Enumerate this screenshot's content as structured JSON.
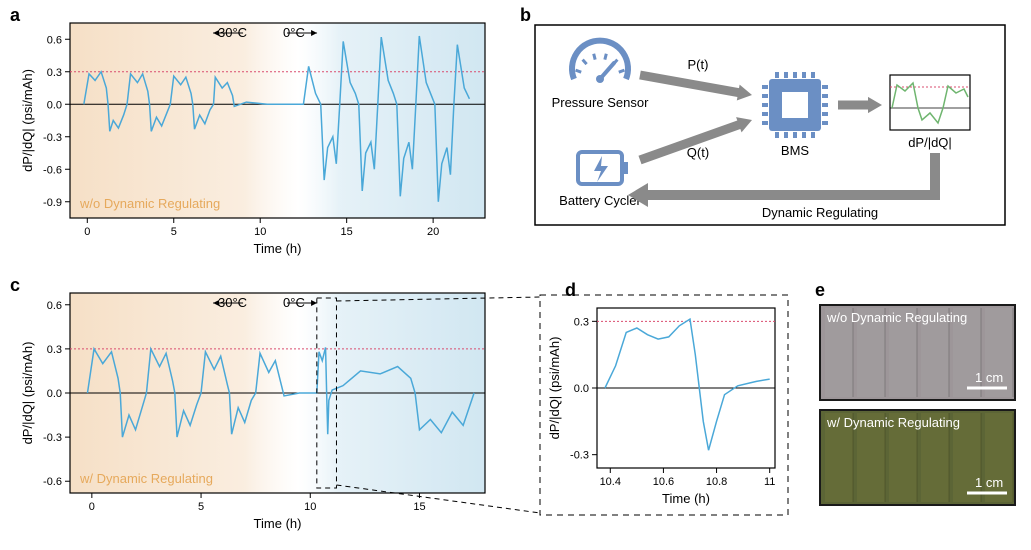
{
  "panelA": {
    "label": "a",
    "type": "line",
    "xlim": [
      -1,
      23
    ],
    "ylim": [
      -1.05,
      0.75
    ],
    "xticks": [
      0,
      5,
      10,
      15,
      20
    ],
    "yticks": [
      -0.9,
      -0.6,
      -0.3,
      0.0,
      0.3,
      0.6
    ],
    "xlabel": "Time (h)",
    "ylabel": "dP/|dQ| (psi/mAh)",
    "threshold_y": 0.3,
    "threshold_color": "#d94c6f",
    "line_color": "#4aa8d8",
    "bg_warm": "#f5dcc0",
    "bg_cool": "#cce4f0",
    "temp_left": "30°C",
    "temp_right": "0°C",
    "annotation": "w/o Dynamic Regulating",
    "annotation_color": "#e6a95c",
    "label_fontsize": 13,
    "tick_fontsize": 11,
    "data": [
      [
        -0.2,
        0
      ],
      [
        0.1,
        0.28
      ],
      [
        0.45,
        0.22
      ],
      [
        0.8,
        0.3
      ],
      [
        1.1,
        0.15
      ],
      [
        1.2,
        0
      ],
      [
        1.3,
        -0.25
      ],
      [
        1.5,
        -0.15
      ],
      [
        1.8,
        -0.22
      ],
      [
        2.1,
        -0.1
      ],
      [
        2.3,
        0
      ],
      [
        2.5,
        0.28
      ],
      [
        2.9,
        0.2
      ],
      [
        3.2,
        0.28
      ],
      [
        3.5,
        0.12
      ],
      [
        3.6,
        0
      ],
      [
        3.7,
        -0.25
      ],
      [
        4.0,
        -0.12
      ],
      [
        4.3,
        -0.2
      ],
      [
        4.6,
        -0.08
      ],
      [
        4.8,
        0
      ],
      [
        5.0,
        0.26
      ],
      [
        5.4,
        0.18
      ],
      [
        5.7,
        0.25
      ],
      [
        6.0,
        0.1
      ],
      [
        6.1,
        0
      ],
      [
        6.2,
        -0.23
      ],
      [
        6.5,
        -0.1
      ],
      [
        6.8,
        -0.18
      ],
      [
        7.1,
        -0.05
      ],
      [
        7.3,
        0
      ],
      [
        7.4,
        0.25
      ],
      [
        7.8,
        0.15
      ],
      [
        8.1,
        0.2
      ],
      [
        8.4,
        0.08
      ],
      [
        8.5,
        -0.02
      ],
      [
        9.2,
        0.02
      ],
      [
        10.4,
        0.0
      ],
      [
        12.5,
        0.0
      ],
      [
        12.8,
        0.35
      ],
      [
        13.2,
        0.1
      ],
      [
        13.5,
        0
      ],
      [
        13.7,
        -0.7
      ],
      [
        13.9,
        -0.4
      ],
      [
        14.2,
        -0.3
      ],
      [
        14.4,
        -0.55
      ],
      [
        14.6,
        0
      ],
      [
        14.8,
        0.58
      ],
      [
        15.2,
        0.2
      ],
      [
        15.5,
        0.1
      ],
      [
        15.7,
        0
      ],
      [
        15.9,
        -0.8
      ],
      [
        16.1,
        -0.45
      ],
      [
        16.4,
        -0.35
      ],
      [
        16.6,
        -0.6
      ],
      [
        16.8,
        0
      ],
      [
        17.0,
        0.62
      ],
      [
        17.4,
        0.22
      ],
      [
        17.7,
        0.1
      ],
      [
        17.9,
        0
      ],
      [
        18.1,
        -0.85
      ],
      [
        18.3,
        -0.5
      ],
      [
        18.6,
        -0.35
      ],
      [
        18.8,
        -0.6
      ],
      [
        19.0,
        0
      ],
      [
        19.2,
        0.63
      ],
      [
        19.6,
        0.2
      ],
      [
        19.9,
        0.08
      ],
      [
        20.1,
        0
      ],
      [
        20.3,
        -0.9
      ],
      [
        20.5,
        -0.55
      ],
      [
        20.8,
        -0.4
      ],
      [
        21.0,
        -0.65
      ],
      [
        21.2,
        0
      ],
      [
        21.4,
        0.55
      ],
      [
        21.8,
        0.15
      ],
      [
        22.1,
        0.05
      ]
    ]
  },
  "panelB": {
    "label": "b",
    "pressure_sensor": "Pressure Sensor",
    "battery_cycler": "Battery Cycler",
    "bms": "BMS",
    "pt": "P(t)",
    "qt": "Q(t)",
    "output": "dP/|dQ|",
    "feedback": "Dynamic Regulating",
    "icon_color": "#6b8fc4",
    "arrow_color": "#8a8a8a",
    "chart_line_color": "#6fb56f",
    "chart_threshold_color": "#d94c6f"
  },
  "panelC": {
    "label": "c",
    "type": "line",
    "xlim": [
      -1,
      18
    ],
    "ylim": [
      -0.68,
      0.68
    ],
    "xticks": [
      0,
      5,
      10,
      15
    ],
    "yticks": [
      -0.6,
      -0.3,
      0.0,
      0.3,
      0.6
    ],
    "xlabel": "Time (h)",
    "ylabel": "dP/|dQ| (psi/mAh)",
    "threshold_y": 0.3,
    "threshold_color": "#d94c6f",
    "line_color": "#4aa8d8",
    "bg_warm": "#f5dcc0",
    "bg_cool": "#cce4f0",
    "temp_left": "30°C",
    "temp_right": "0°C",
    "annotation": "w/ Dynamic Regulating",
    "annotation_color": "#e6a95c",
    "zoom_x": [
      10.3,
      11.2
    ],
    "data": [
      [
        -0.2,
        0
      ],
      [
        0.1,
        0.3
      ],
      [
        0.5,
        0.2
      ],
      [
        0.9,
        0.28
      ],
      [
        1.2,
        0.1
      ],
      [
        1.3,
        0
      ],
      [
        1.4,
        -0.3
      ],
      [
        1.7,
        -0.15
      ],
      [
        2.0,
        -0.25
      ],
      [
        2.3,
        -0.1
      ],
      [
        2.5,
        0
      ],
      [
        2.7,
        0.3
      ],
      [
        3.1,
        0.18
      ],
      [
        3.4,
        0.27
      ],
      [
        3.7,
        0.08
      ],
      [
        3.8,
        0
      ],
      [
        3.9,
        -0.3
      ],
      [
        4.2,
        -0.12
      ],
      [
        4.5,
        -0.22
      ],
      [
        4.8,
        -0.08
      ],
      [
        5.0,
        0
      ],
      [
        5.2,
        0.28
      ],
      [
        5.6,
        0.16
      ],
      [
        5.9,
        0.25
      ],
      [
        6.2,
        0.06
      ],
      [
        6.3,
        0
      ],
      [
        6.4,
        -0.28
      ],
      [
        6.7,
        -0.1
      ],
      [
        7.0,
        -0.2
      ],
      [
        7.3,
        -0.05
      ],
      [
        7.5,
        0
      ],
      [
        7.7,
        0.27
      ],
      [
        8.1,
        0.14
      ],
      [
        8.4,
        0.22
      ],
      [
        8.7,
        0.04
      ],
      [
        8.8,
        -0.02
      ],
      [
        9.5,
        0.0
      ],
      [
        10.3,
        0.0
      ],
      [
        10.4,
        0.28
      ],
      [
        10.55,
        0.22
      ],
      [
        10.7,
        0.31
      ],
      [
        10.75,
        0
      ],
      [
        10.8,
        -0.28
      ],
      [
        10.85,
        -0.05
      ],
      [
        11.0,
        0.02
      ],
      [
        11.5,
        0.05
      ],
      [
        12.3,
        0.15
      ],
      [
        13.2,
        0.13
      ],
      [
        14.0,
        0.18
      ],
      [
        14.6,
        0.1
      ],
      [
        14.8,
        0
      ],
      [
        15.0,
        -0.25
      ],
      [
        15.5,
        -0.18
      ],
      [
        16.0,
        -0.27
      ],
      [
        16.5,
        -0.13
      ],
      [
        17.0,
        -0.22
      ],
      [
        17.5,
        0.0
      ]
    ]
  },
  "panelD": {
    "label": "d",
    "type": "line",
    "xlim": [
      10.35,
      11.02
    ],
    "ylim": [
      -0.36,
      0.36
    ],
    "xticks": [
      10.4,
      10.6,
      10.8,
      11.0
    ],
    "yticks": [
      -0.3,
      0.0,
      0.3
    ],
    "xlabel": "Time (h)",
    "ylabel": "dP/|dQ| (psi/mAh)",
    "threshold_y": 0.3,
    "threshold_color": "#d94c6f",
    "line_color": "#4aa8d8",
    "data": [
      [
        10.38,
        0.0
      ],
      [
        10.42,
        0.1
      ],
      [
        10.46,
        0.25
      ],
      [
        10.5,
        0.27
      ],
      [
        10.54,
        0.24
      ],
      [
        10.58,
        0.22
      ],
      [
        10.62,
        0.23
      ],
      [
        10.66,
        0.28
      ],
      [
        10.7,
        0.31
      ],
      [
        10.72,
        0.15
      ],
      [
        10.735,
        0.0
      ],
      [
        10.75,
        -0.15
      ],
      [
        10.77,
        -0.28
      ],
      [
        10.8,
        -0.15
      ],
      [
        10.83,
        -0.03
      ],
      [
        10.88,
        0.01
      ],
      [
        10.95,
        0.03
      ],
      [
        11.0,
        0.04
      ]
    ]
  },
  "panelE": {
    "label": "e",
    "top_label": "w/o Dynamic Regulating",
    "bottom_label": "w/ Dynamic Regulating",
    "scale_label": "1 cm",
    "top_bg": "#9d9699",
    "bottom_bg": "#5c6536",
    "border_color": "#1a1a1a"
  }
}
